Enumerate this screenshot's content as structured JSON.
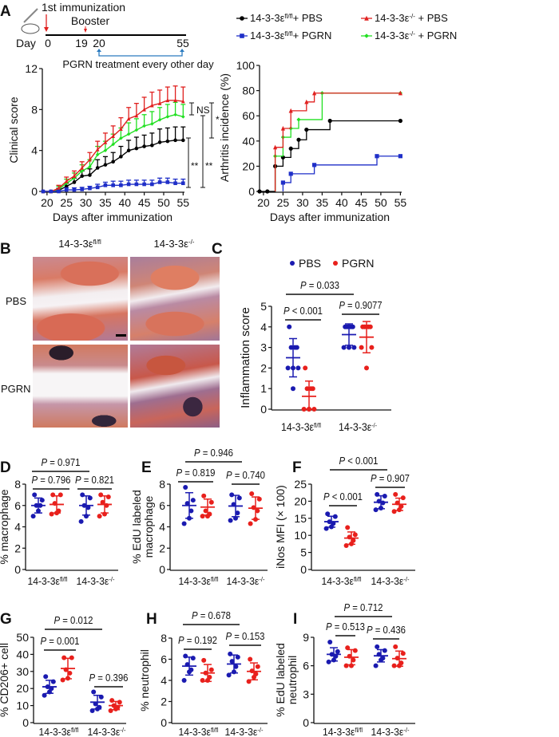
{
  "panels": {
    "A": "A",
    "B": "B",
    "C": "C",
    "D": "D",
    "E": "E",
    "F": "F",
    "G": "G",
    "H": "H",
    "I": "I"
  },
  "p_symbol": "P",
  "genotypes": {
    "flfl": {
      "base": "14-3-3ε",
      "sup": "fl/fl"
    },
    "ko": {
      "base": "14-3-3ε",
      "sup": "-/-"
    }
  },
  "timeline": {
    "day_label": "Day",
    "days": [
      "0",
      "19",
      "20",
      "55"
    ],
    "first_immunization": "1st immunization",
    "booster": "Booster",
    "treatment": "PGRN treatment every other day",
    "colors": {
      "arrow": "#e0201f",
      "treatment": "#1a1ad6",
      "bracket": "#2a7bbf"
    }
  },
  "legend_A": [
    {
      "base": "14-3-3ε",
      "sup": "fl/fl",
      "suffix": "+ PBS",
      "color": "#000000",
      "marker": "circle"
    },
    {
      "base": "14-3-3ε",
      "sup": "-/-",
      "suffix": " + PBS",
      "color": "#e0201f",
      "marker": "triangle"
    },
    {
      "base": "14-3-3ε",
      "sup": "fl/fl",
      "suffix": "+ PGRN",
      "color": "#1f2fc8",
      "marker": "square"
    },
    {
      "base": "14-3-3ε",
      "sup": "-/-",
      "suffix": " + PGRN",
      "color": "#22e022",
      "marker": "diamond"
    }
  ],
  "histology": {
    "col_headers": [
      {
        "base": "14-3-3ε",
        "sup": "fl/fl"
      },
      {
        "base": "14-3-3ε",
        "sup": "-/-"
      }
    ],
    "row_labels": [
      "PBS",
      "PGRN"
    ]
  },
  "legend_C": [
    {
      "label": "PBS",
      "color": "#1a1ab0"
    },
    {
      "label": "PGRN",
      "color": "#e8201c"
    }
  ],
  "chart_data": [
    {
      "panel": "A-clinical",
      "type": "line",
      "xlabel": "Days after immunization",
      "ylabel": "Clinical score",
      "xlim": [
        19,
        55
      ],
      "ylim": [
        0,
        12
      ],
      "yticks": [
        "0",
        "4",
        "8",
        "12"
      ],
      "xticks": [
        "20",
        "25",
        "30",
        "35",
        "40",
        "45",
        "50",
        "55"
      ],
      "x": [
        19,
        21,
        23,
        25,
        27,
        29,
        31,
        33,
        35,
        37,
        39,
        41,
        43,
        45,
        47,
        49,
        51,
        53,
        55
      ],
      "series": [
        {
          "legend": 0,
          "values": [
            0,
            0,
            0.1,
            0.5,
            0.9,
            1.5,
            1.6,
            2.3,
            2.6,
            2.9,
            3.4,
            4.0,
            4.2,
            4.4,
            4.5,
            4.8,
            4.9,
            5.0,
            5.0
          ],
          "errors": [
            0,
            0,
            0.2,
            0.3,
            0.4,
            0.5,
            0.6,
            0.8,
            0.8,
            0.9,
            1.0,
            1.0,
            1.1,
            1.1,
            1.2,
            1.3,
            1.3,
            1.3,
            1.3
          ]
        },
        {
          "legend": 3,
          "values": [
            0,
            0,
            0.2,
            0.8,
            1.3,
            2.0,
            2.4,
            3.6,
            4.0,
            4.6,
            5.2,
            5.6,
            6.0,
            6.4,
            6.6,
            7.0,
            7.3,
            7.5,
            7.3
          ],
          "errors": [
            0,
            0,
            0.3,
            0.4,
            0.5,
            0.6,
            0.7,
            0.8,
            0.9,
            1.0,
            1.0,
            1.1,
            1.1,
            1.1,
            1.2,
            1.2,
            1.2,
            1.2,
            1.2
          ]
        },
        {
          "legend": 1,
          "values": [
            0,
            0,
            0.3,
            1.0,
            1.5,
            2.3,
            3.1,
            4.1,
            4.8,
            5.4,
            6.1,
            7.1,
            7.4,
            8.0,
            8.4,
            8.6,
            8.9,
            8.9,
            8.8
          ],
          "errors": [
            0,
            0,
            0.3,
            0.4,
            0.5,
            0.6,
            0.7,
            0.8,
            0.9,
            1.0,
            1.1,
            1.1,
            1.2,
            1.2,
            1.3,
            1.3,
            1.3,
            1.4,
            1.4
          ]
        },
        {
          "legend": 2,
          "values": [
            0,
            0,
            0,
            0.15,
            0.15,
            0.2,
            0.3,
            0.4,
            0.6,
            0.6,
            0.6,
            0.7,
            0.7,
            0.7,
            0.7,
            0.9,
            0.9,
            0.8,
            0.8
          ],
          "errors": [
            0,
            0,
            0.1,
            0.2,
            0.2,
            0.2,
            0.2,
            0.3,
            0.3,
            0.4,
            0.4,
            0.4,
            0.4,
            0.4,
            0.4,
            0.4,
            0.4,
            0.4,
            0.4
          ]
        }
      ],
      "significance": [
        "NS",
        "*",
        "**",
        "**"
      ]
    },
    {
      "panel": "A-incidence",
      "type": "line",
      "xlabel": "Days after immunization",
      "ylabel": "Arthritis incidence (%)",
      "xlim": [
        19,
        55
      ],
      "ylim": [
        0,
        100
      ],
      "yticks": [
        "0",
        "20",
        "40",
        "60",
        "80",
        "100"
      ],
      "xticks": [
        "20",
        "25",
        "30",
        "35",
        "40",
        "45",
        "50",
        "55"
      ],
      "series": [
        {
          "legend": 0,
          "points": [
            [
              19,
              0
            ],
            [
              21,
              0
            ],
            [
              23,
              20
            ],
            [
              25,
              27
            ],
            [
              27,
              34
            ],
            [
              29,
              41
            ],
            [
              31,
              49
            ],
            [
              37,
              56
            ],
            [
              55,
              56
            ]
          ]
        },
        {
          "legend": 3,
          "points": [
            [
              23,
              28
            ],
            [
              25,
              43
            ],
            [
              27,
              50
            ],
            [
              29,
              57
            ],
            [
              35,
              78
            ],
            [
              55,
              78
            ]
          ]
        },
        {
          "legend": 1,
          "points": [
            [
              23,
              35
            ],
            [
              25,
              50
            ],
            [
              27,
              64
            ],
            [
              31,
              71
            ],
            [
              33,
              78
            ],
            [
              55,
              78
            ]
          ]
        },
        {
          "legend": 2,
          "points": [
            [
              25,
              7
            ],
            [
              27,
              14
            ],
            [
              33,
              21
            ],
            [
              49,
              28
            ],
            [
              55,
              28
            ]
          ]
        }
      ]
    },
    {
      "panel": "C",
      "type": "scatter",
      "ylabel": [
        "Inflammation score"
      ],
      "ylim": [
        0,
        5
      ],
      "yticks": [
        "0",
        "1",
        "2",
        "3",
        "4",
        "5"
      ],
      "groups": [
        {
          "values": [
            4,
            3,
            3,
            3,
            2,
            2,
            2,
            1
          ],
          "mean": 2.5,
          "sd": 0.93,
          "treatment": 0
        },
        {
          "values": [
            2,
            1,
            1,
            1,
            0,
            0,
            0,
            0
          ],
          "mean": 0.625,
          "sd": 0.74,
          "treatment": 1
        },
        {
          "values": [
            4,
            4,
            4,
            4,
            4,
            3,
            3,
            3
          ],
          "mean": 3.625,
          "sd": 0.52,
          "treatment": 0
        },
        {
          "values": [
            4,
            4,
            4,
            4,
            4,
            3,
            3,
            2
          ],
          "mean": 3.5,
          "sd": 0.76,
          "treatment": 1
        }
      ],
      "comparisons": {
        "overall": " = 0.033",
        "flfl": " < 0.001",
        "ko": " = 0.9077"
      }
    },
    {
      "panel": "D",
      "type": "scatter",
      "ylabel": [
        "% macrophage"
      ],
      "ylim": [
        0,
        8
      ],
      "yticks": [
        "0",
        "2",
        "4",
        "6",
        "8"
      ],
      "groups": [
        {
          "values": [
            7,
            6.5,
            6,
            6,
            5.5,
            5
          ],
          "mean": 6.0,
          "sd": 0.7,
          "treatment": 0
        },
        {
          "values": [
            7,
            7,
            6.2,
            5.5,
            5.3,
            5.2
          ],
          "mean": 6.1,
          "sd": 0.8,
          "treatment": 1
        },
        {
          "values": [
            7,
            6.7,
            6,
            5.8,
            5,
            4.5
          ],
          "mean": 6.0,
          "sd": 0.9,
          "treatment": 0
        },
        {
          "values": [
            7,
            6.8,
            6.3,
            6,
            5.2,
            5
          ],
          "mean": 6.1,
          "sd": 0.8,
          "treatment": 1
        }
      ],
      "comparisons": {
        "overall": " = 0.971",
        "flfl": " = 0.796",
        "ko": " = 0.821"
      }
    },
    {
      "panel": "E",
      "type": "scatter",
      "ylabel": [
        "% EdU labeled",
        "macrophage"
      ],
      "ylim": [
        0,
        8
      ],
      "yticks": [
        "0",
        "2",
        "4",
        "6",
        "8"
      ],
      "groups": [
        {
          "values": [
            7.7,
            6.5,
            6.2,
            5.5,
            4.8,
            4.3
          ],
          "mean": 6.0,
          "sd": 1.2,
          "treatment": 0
        },
        {
          "values": [
            6.9,
            6.3,
            5.5,
            5.2,
            5,
            5
          ],
          "mean": 5.85,
          "sd": 0.75,
          "treatment": 1
        },
        {
          "values": [
            7,
            6.7,
            6.1,
            5.3,
            4.8,
            4.6
          ],
          "mean": 5.95,
          "sd": 1.0,
          "treatment": 0
        },
        {
          "values": [
            7.1,
            6.6,
            5.8,
            5.5,
            4.7,
            4.3
          ],
          "mean": 5.75,
          "sd": 1.05,
          "treatment": 1
        }
      ],
      "comparisons": {
        "overall": " = 0.946",
        "flfl": " = 0.819",
        "ko": " = 0.740"
      }
    },
    {
      "panel": "F",
      "type": "scatter",
      "ylabel": [
        "iNos MFI (× 100)"
      ],
      "ylim": [
        0,
        25
      ],
      "yticks": [
        "0",
        "5",
        "10",
        "15",
        "20",
        "25"
      ],
      "groups": [
        {
          "values": [
            16.3,
            15.5,
            14,
            13.5,
            12.5,
            12
          ],
          "mean": 14.0,
          "sd": 1.6,
          "treatment": 0
        },
        {
          "values": [
            12.3,
            10.2,
            9.5,
            8.5,
            7.5,
            7
          ],
          "mean": 9.2,
          "sd": 1.8,
          "treatment": 1
        },
        {
          "values": [
            22,
            21.5,
            20,
            19.5,
            18,
            17.5
          ],
          "mean": 19.7,
          "sd": 1.9,
          "treatment": 0
        },
        {
          "values": [
            22,
            21,
            19.5,
            18.5,
            17.5,
            17
          ],
          "mean": 19.1,
          "sd": 1.8,
          "treatment": 1
        }
      ],
      "comparisons": {
        "overall": " < 0.001",
        "flfl": " < 0.001",
        "ko": " = 0.907"
      }
    },
    {
      "panel": "G",
      "type": "scatter",
      "ylabel": [
        "% CD206+ cell"
      ],
      "ylim": [
        0,
        50
      ],
      "yticks": [
        "0",
        "10",
        "20",
        "30",
        "40",
        "50"
      ],
      "groups": [
        {
          "values": [
            27,
            24,
            21,
            20,
            18,
            16
          ],
          "mean": 21.0,
          "sd": 3.8,
          "treatment": 0
        },
        {
          "values": [
            38,
            38,
            31,
            29,
            26,
            25
          ],
          "mean": 31.7,
          "sd": 6.0,
          "treatment": 1
        },
        {
          "values": [
            18,
            15,
            11,
            9,
            8,
            7
          ],
          "mean": 12.0,
          "sd": 4.0,
          "treatment": 0
        },
        {
          "values": [
            13,
            12,
            10,
            9,
            8,
            7
          ],
          "mean": 10.0,
          "sd": 2.4,
          "treatment": 1
        }
      ],
      "comparisons": {
        "overall": " = 0.012",
        "flfl": " = 0.001",
        "ko": " = 0.396"
      }
    },
    {
      "panel": "H",
      "type": "scatter",
      "ylabel": [
        "% neutrophil"
      ],
      "ylim": [
        0,
        8
      ],
      "yticks": [
        "0",
        "2",
        "4",
        "6",
        "8"
      ],
      "groups": [
        {
          "values": [
            6.3,
            6.1,
            5.5,
            5,
            4.8,
            4
          ],
          "mean": 5.35,
          "sd": 0.85,
          "treatment": 0
        },
        {
          "values": [
            5.9,
            5,
            4.7,
            4.3,
            4,
            4
          ],
          "mean": 4.7,
          "sd": 0.8,
          "treatment": 1
        },
        {
          "values": [
            6.5,
            6.2,
            5.8,
            5.3,
            4.8,
            4.5
          ],
          "mean": 5.55,
          "sd": 0.85,
          "treatment": 0
        },
        {
          "values": [
            6,
            5.3,
            4.9,
            4.6,
            4.3,
            3.9
          ],
          "mean": 4.85,
          "sd": 0.8,
          "treatment": 1
        }
      ],
      "comparisons": {
        "overall": " = 0.678",
        "flfl": " = 0.192",
        "ko": " = 0.153"
      }
    },
    {
      "panel": "I",
      "type": "scatter",
      "ylabel": [
        "% EdU labeled",
        "neutrophil"
      ],
      "ylim": [
        0,
        9
      ],
      "yticks": [
        "0",
        "3",
        "6",
        "9"
      ],
      "groups": [
        {
          "values": [
            8.5,
            7.5,
            7.2,
            7,
            6.6,
            6.4
          ],
          "mean": 7.2,
          "sd": 0.7,
          "treatment": 0
        },
        {
          "values": [
            7.9,
            7.6,
            7,
            6.6,
            6,
            6
          ],
          "mean": 6.9,
          "sd": 0.8,
          "treatment": 1
        },
        {
          "values": [
            8,
            7.6,
            7.2,
            6.8,
            6.6,
            6
          ],
          "mean": 7.05,
          "sd": 0.65,
          "treatment": 0
        },
        {
          "values": [
            8,
            7.3,
            6.8,
            6.3,
            6,
            6
          ],
          "mean": 6.75,
          "sd": 0.8,
          "treatment": 1
        }
      ],
      "comparisons": {
        "overall": " = 0.712",
        "flfl": " = 0.513",
        "ko": " = 0.436"
      }
    }
  ]
}
